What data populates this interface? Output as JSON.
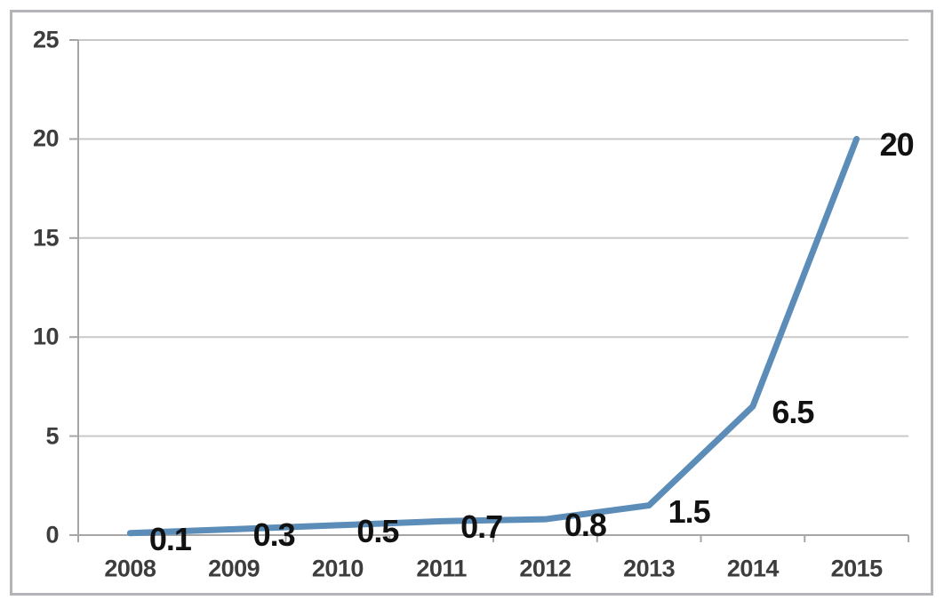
{
  "chart_data": {
    "type": "line",
    "title": "",
    "xlabel": "",
    "ylabel": "",
    "categories": [
      "2008",
      "2009",
      "2010",
      "2011",
      "2012",
      "2013",
      "2014",
      "2015"
    ],
    "values": [
      0.1,
      0.3,
      0.5,
      0.7,
      0.8,
      1.5,
      6.5,
      20
    ],
    "data_labels": [
      "0.1",
      "0.3",
      "0.5",
      "0.7",
      "0.8",
      "1.5",
      "6.5",
      "20"
    ],
    "y_ticks": [
      0,
      5,
      10,
      15,
      20,
      25
    ],
    "ylim": [
      0,
      25
    ],
    "grid": true,
    "legend": "none",
    "markers": "none",
    "colors": {
      "line": "#5b8db8",
      "gridline": "#c9c9c9",
      "axis": "#a6a6a6",
      "tick_label": "#3d3d3d",
      "data_label": "#111111",
      "frame_border": "#b4b4b8",
      "background": "#ffffff"
    }
  }
}
